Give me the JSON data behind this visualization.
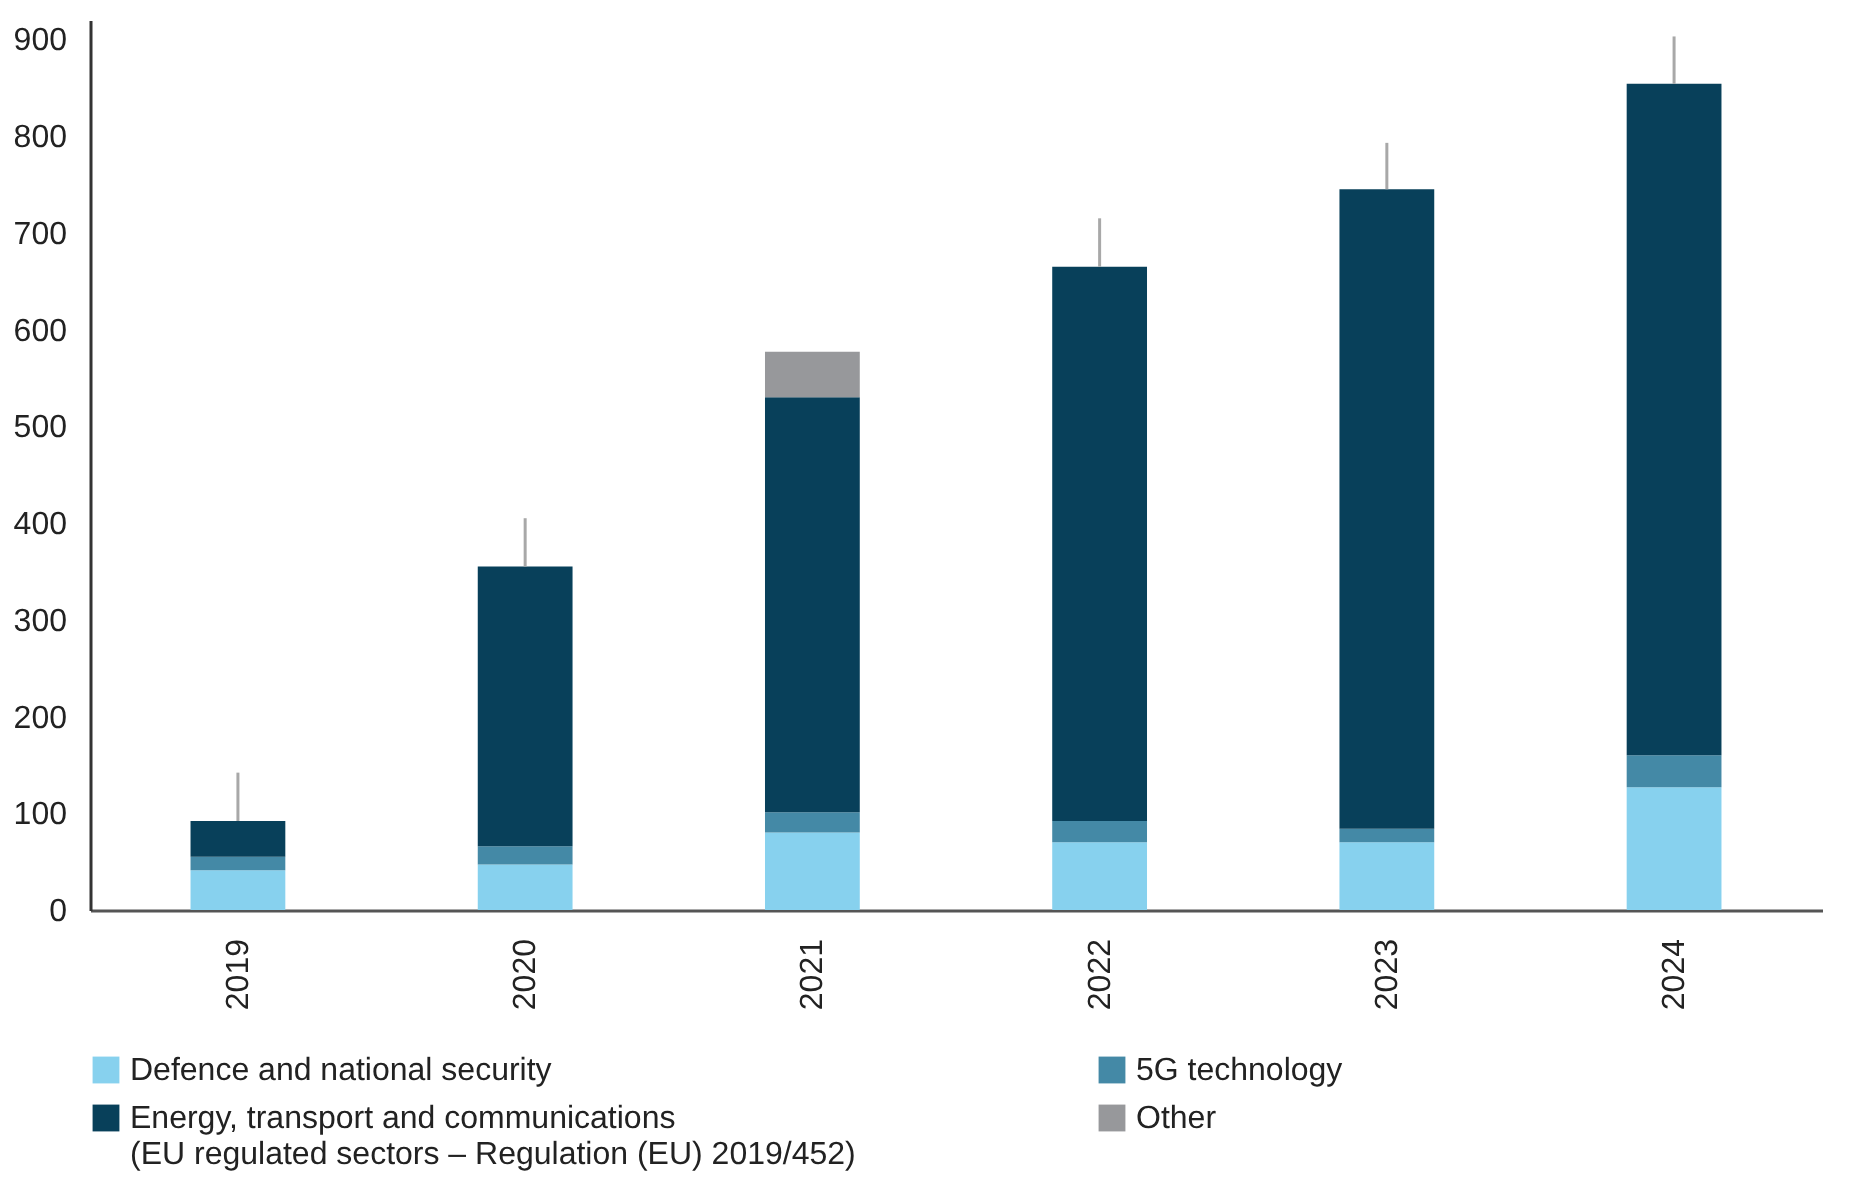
{
  "chart_data": {
    "type": "bar",
    "stacked": true,
    "categories": [
      "2019",
      "2020",
      "2021",
      "2022",
      "2023",
      "2024"
    ],
    "series": [
      {
        "name": "Defence and national security",
        "color": "#87d1ee",
        "values": [
          41,
          47,
          80,
          70,
          70,
          127
        ]
      },
      {
        "name": "5G technology",
        "color": "#4489a6",
        "values": [
          14,
          19,
          21,
          22,
          14,
          33
        ]
      },
      {
        "name": "Energy, transport and communications\n(EU regulated sectors – Regulation (EU) 2019/452)",
        "color": "#08405a",
        "values": [
          37,
          289,
          429,
          573,
          661,
          694
        ],
        "errors": [
          [
            92,
            142
          ],
          [
            355,
            405
          ],
          null,
          [
            665,
            715
          ],
          [
            745,
            793
          ],
          [
            854,
            903
          ]
        ]
      },
      {
        "name": "Other",
        "color": "#97989b",
        "values": [
          null,
          null,
          47,
          null,
          null,
          null
        ]
      }
    ],
    "ylim": [
      0,
      920
    ],
    "yticks": [
      0,
      100,
      200,
      300,
      400,
      500,
      600,
      700,
      800,
      900
    ],
    "grid": false,
    "legend": "bottom"
  }
}
